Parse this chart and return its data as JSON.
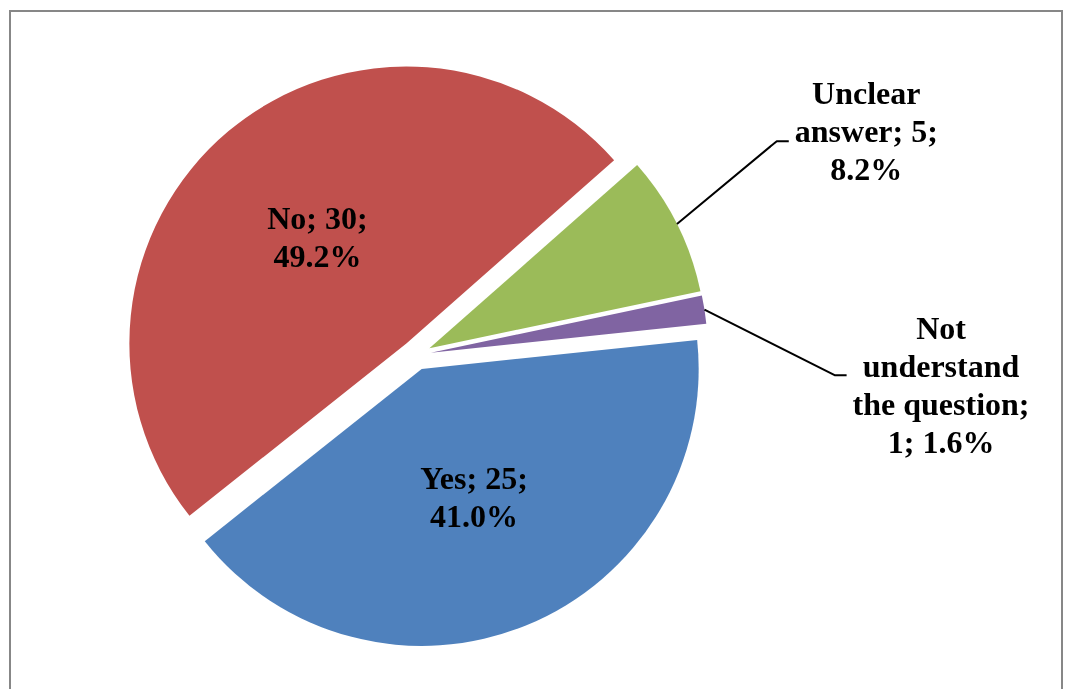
{
  "chart_data": {
    "type": "pie",
    "values": [
      25,
      30,
      5,
      1
    ],
    "colors": [
      "#4f81bd",
      "#c0504d",
      "#9bbb59",
      "#8064a2"
    ],
    "value_labels": [
      "Yes; 25; 41.0%",
      "No; 30; 49.2%",
      "Unclear answer; 5; 8.2%",
      "Not understand the question; 1; 1.6%"
    ]
  }
}
